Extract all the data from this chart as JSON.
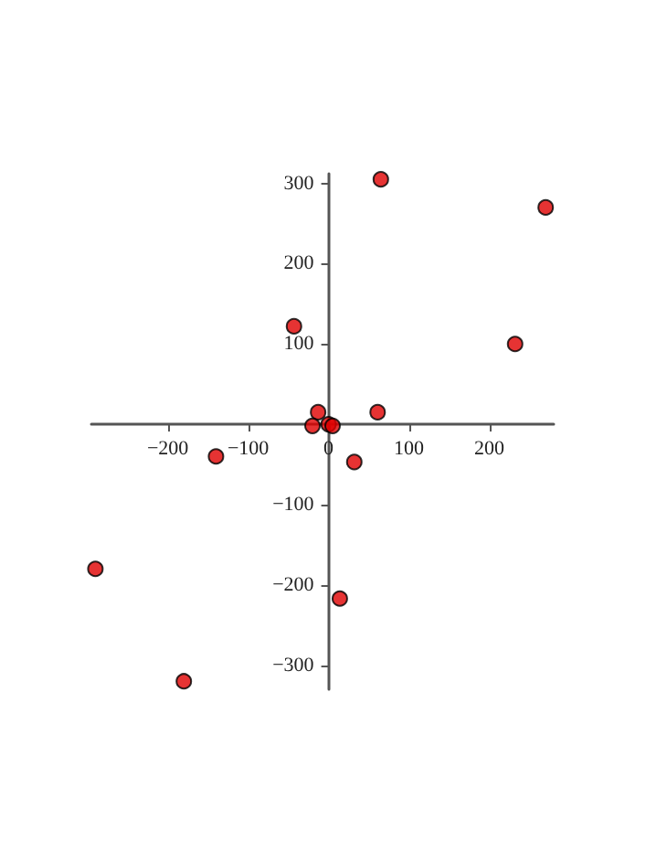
{
  "chart_data": {
    "type": "scatter",
    "x": [
      65,
      270,
      -43,
      232,
      -13,
      61,
      -20,
      0,
      5,
      -140,
      32,
      -290,
      14,
      -180
    ],
    "values": [
      305,
      270,
      122,
      100,
      15,
      15,
      -2,
      0,
      -2,
      -40,
      -47,
      -180,
      -217,
      -320
    ],
    "color": "#e00000",
    "marker": "circle",
    "grid": false,
    "xlim": [
      -295,
      280
    ],
    "ylim": [
      -330,
      312
    ],
    "xticks": [
      {
        "value": -200,
        "label": "−200"
      },
      {
        "value": -100,
        "label": "−100"
      },
      0,
      100,
      200
    ],
    "yticks": [
      {
        "value": -300,
        "label": "−300"
      },
      {
        "value": -200,
        "label": "−200"
      },
      {
        "value": -100,
        "label": "−100"
      },
      100,
      200,
      300
    ]
  }
}
